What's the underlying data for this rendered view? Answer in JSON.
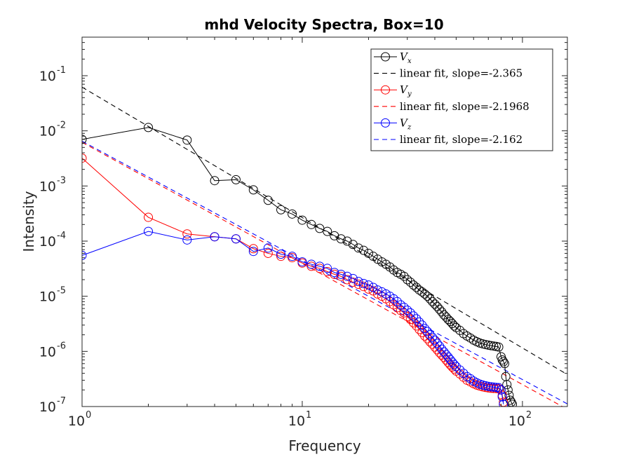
{
  "chart_data": {
    "type": "line",
    "title": "mhd Velocity Spectra, Box=10",
    "xlabel": "Frequency",
    "ylabel": "Intensity",
    "xscale": "log",
    "yscale": "log",
    "xlim": [
      1,
      160
    ],
    "ylim": [
      1e-07,
      0.5
    ],
    "x_ticks": [
      {
        "base": "10",
        "exp": "0",
        "value": 1
      },
      {
        "base": "10",
        "exp": "1",
        "value": 10
      },
      {
        "base": "10",
        "exp": "2",
        "value": 100
      }
    ],
    "y_ticks": [
      {
        "base": "10",
        "exp": "-7",
        "value": 1e-07
      },
      {
        "base": "10",
        "exp": "-6",
        "value": 1e-06
      },
      {
        "base": "10",
        "exp": "-5",
        "value": 1e-05
      },
      {
        "base": "10",
        "exp": "-4",
        "value": 0.0001
      },
      {
        "base": "10",
        "exp": "-3",
        "value": 0.001
      },
      {
        "base": "10",
        "exp": "-2",
        "value": 0.01
      },
      {
        "base": "10",
        "exp": "-1",
        "value": 0.1
      }
    ],
    "grid": false,
    "legend_position": "top-right",
    "series": [
      {
        "name": "V",
        "sub": "x",
        "color": "#000000",
        "marker": "circle",
        "x": [
          1,
          2,
          3,
          4,
          5,
          6,
          7,
          8,
          9,
          10,
          11,
          12,
          13,
          14,
          15,
          16,
          17,
          18,
          19,
          20,
          21,
          22,
          23,
          24,
          25,
          26,
          27,
          28,
          29,
          30,
          31,
          32,
          33,
          34,
          35,
          36,
          37,
          38,
          39,
          40,
          41,
          42,
          43,
          44,
          45,
          46,
          47,
          48,
          49,
          50,
          52,
          54,
          56,
          58,
          60,
          62,
          64,
          66,
          68,
          70,
          72,
          74,
          76,
          78,
          80,
          81,
          82,
          83,
          84,
          85,
          86,
          87,
          88,
          89,
          90
        ],
        "y": [
          0.007,
          0.0115,
          0.0068,
          0.00125,
          0.0013,
          0.00085,
          0.00055,
          0.00037,
          0.00031,
          0.00024,
          0.0002,
          0.00017,
          0.00015,
          0.000125,
          0.00011,
          0.0001,
          8.7e-05,
          7.5e-05,
          6.8e-05,
          6e-05,
          5.3e-05,
          4.7e-05,
          4.2e-05,
          3.8e-05,
          3.4e-05,
          3e-05,
          2.7e-05,
          2.5e-05,
          2.3e-05,
          2e-05,
          1.8e-05,
          1.6e-05,
          1.45e-05,
          1.3e-05,
          1.2e-05,
          1.1e-05,
          1e-05,
          9e-06,
          8e-06,
          7.2e-06,
          6.5e-06,
          5.8e-06,
          5.2e-06,
          4.6e-06,
          4.2e-06,
          3.8e-06,
          3.5e-06,
          3.2e-06,
          2.9e-06,
          2.7e-06,
          2.4e-06,
          2.1e-06,
          1.9e-06,
          1.75e-06,
          1.6e-06,
          1.5e-06,
          1.42e-06,
          1.37e-06,
          1.33e-06,
          1.3e-06,
          1.27e-06,
          1.25e-06,
          1.23e-06,
          1.2e-06,
          8e-07,
          7e-07,
          6.5e-07,
          6e-07,
          3.5e-07,
          2.5e-07,
          2e-07,
          1.6e-07,
          1.3e-07,
          1.2e-07,
          1.1e-07
        ]
      },
      {
        "name": "V",
        "sub": "y",
        "color": "#ff0000",
        "marker": "circle",
        "x": [
          1,
          2,
          3,
          4,
          5,
          6,
          7,
          8,
          9,
          10,
          11,
          12,
          13,
          14,
          15,
          16,
          17,
          18,
          19,
          20,
          21,
          22,
          23,
          24,
          25,
          26,
          27,
          28,
          29,
          30,
          31,
          32,
          33,
          34,
          35,
          36,
          37,
          38,
          39,
          40,
          41,
          42,
          43,
          44,
          45,
          46,
          47,
          48,
          49,
          50,
          52,
          54,
          56,
          58,
          60,
          62,
          64,
          66,
          68,
          70,
          72,
          74,
          76,
          78,
          80,
          81,
          82
        ],
        "y": [
          0.0032,
          0.00027,
          0.000135,
          0.00012,
          0.00011,
          7.3e-05,
          6e-05,
          5.3e-05,
          5e-05,
          4e-05,
          3.5e-05,
          3.2e-05,
          2.8e-05,
          2.5e-05,
          2.3e-05,
          2e-05,
          1.8e-05,
          1.65e-05,
          1.5e-05,
          1.35e-05,
          1.25e-05,
          1.1e-05,
          1e-05,
          9e-06,
          8e-06,
          7e-06,
          6.2e-06,
          5.5e-06,
          5e-06,
          4.3e-06,
          3.8e-06,
          3.3e-06,
          2.9e-06,
          2.5e-06,
          2.2e-06,
          1.9e-06,
          1.7e-06,
          1.5e-06,
          1.35e-06,
          1.2e-06,
          1.07e-06,
          9.5e-07,
          8.6e-07,
          7.8e-07,
          7e-07,
          6.3e-07,
          5.7e-07,
          5.2e-07,
          4.8e-07,
          4.4e-07,
          3.9e-07,
          3.4e-07,
          3e-07,
          2.8e-07,
          2.6e-07,
          2.45e-07,
          2.35e-07,
          2.28e-07,
          2.22e-07,
          2.18e-07,
          2.15e-07,
          2.13e-07,
          2.12e-07,
          2.1e-07,
          2e-07,
          1.6e-07,
          1.2e-07
        ]
      },
      {
        "name": "V",
        "sub": "z",
        "color": "#0000ff",
        "marker": "circle",
        "x": [
          1,
          2,
          3,
          4,
          5,
          6,
          7,
          8,
          9,
          10,
          11,
          12,
          13,
          14,
          15,
          16,
          17,
          18,
          19,
          20,
          21,
          22,
          23,
          24,
          25,
          26,
          27,
          28,
          29,
          30,
          31,
          32,
          33,
          34,
          35,
          36,
          37,
          38,
          39,
          40,
          41,
          42,
          43,
          44,
          45,
          46,
          47,
          48,
          49,
          50,
          52,
          54,
          56,
          58,
          60,
          62,
          64,
          66,
          68,
          70,
          72,
          74,
          76,
          78,
          80,
          81,
          82
        ],
        "y": [
          5.5e-05,
          0.00015,
          0.000105,
          0.00012,
          0.00011,
          6.5e-05,
          7.5e-05,
          5.8e-05,
          5.3e-05,
          4.2e-05,
          3.8e-05,
          3.5e-05,
          3.2e-05,
          2.7e-05,
          2.5e-05,
          2.3e-05,
          2.1e-05,
          1.85e-05,
          1.7e-05,
          1.6e-05,
          1.45e-05,
          1.3e-05,
          1.2e-05,
          1.1e-05,
          1e-05,
          9e-06,
          8e-06,
          7e-06,
          6.3e-06,
          5.6e-06,
          5e-06,
          4.4e-06,
          3.9e-06,
          3.4e-06,
          3e-06,
          2.6e-06,
          2.3e-06,
          2e-06,
          1.8e-06,
          1.6e-06,
          1.4e-06,
          1.25e-06,
          1.1e-06,
          9.8e-07,
          8.8e-07,
          7.9e-07,
          7.1e-07,
          6.4e-07,
          5.8e-07,
          5.3e-07,
          4.6e-07,
          4e-07,
          3.5e-07,
          3.2e-07,
          2.9e-07,
          2.7e-07,
          2.55e-07,
          2.45e-07,
          2.38e-07,
          2.32e-07,
          2.28e-07,
          2.25e-07,
          2.22e-07,
          2.2e-07,
          2e-07,
          1.5e-07,
          1.1e-07
        ]
      }
    ],
    "fits": [
      {
        "label": "linear fit, slope=-2.365",
        "color": "#000000",
        "slope": -2.365,
        "x": [
          1,
          160
        ],
        "y_at_1": 0.062
      },
      {
        "label": "linear fit, slope=-2.1968",
        "color": "#ff0000",
        "slope": -2.1968,
        "x": [
          1,
          160
        ],
        "y_at_1": 0.0062
      },
      {
        "label": "linear fit, slope=-2.162",
        "color": "#0000ff",
        "slope": -2.162,
        "x": [
          1,
          160
        ],
        "y_at_1": 0.0065
      }
    ]
  }
}
